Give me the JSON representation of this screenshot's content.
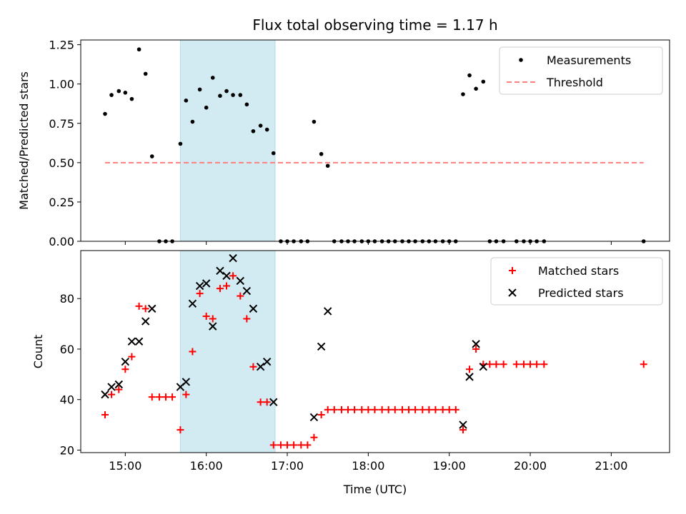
{
  "chart_data": [
    {
      "type": "scatter",
      "title": "Flux total observing time = 1.17 h",
      "xlabel": "",
      "ylabel": "Matched/Predicted stars",
      "ylim": [
        0,
        1.28
      ],
      "yticks": [
        0.0,
        0.25,
        0.5,
        0.75,
        1.0,
        1.25
      ],
      "ytick_labels": [
        "0.00",
        "0.25",
        "0.50",
        "0.75",
        "1.00",
        "1.25"
      ],
      "x_unit": "hours UTC",
      "xlim": [
        14.45,
        21.72
      ],
      "shaded_region": [
        15.68,
        16.85
      ],
      "shade_color": "#add8e6",
      "legend_position": "upper right",
      "series": [
        {
          "name": "Measurements",
          "kind": "points",
          "color": "#000000",
          "x": [
            14.75,
            14.83,
            14.92,
            15.0,
            15.08,
            15.17,
            15.25,
            15.33,
            15.42,
            15.5,
            15.58,
            15.68,
            15.75,
            15.83,
            15.92,
            16.0,
            16.08,
            16.17,
            16.25,
            16.33,
            16.42,
            16.5,
            16.58,
            16.67,
            16.75,
            16.83,
            16.92,
            17.0,
            17.08,
            17.17,
            17.25,
            17.33,
            17.42,
            17.5,
            17.58,
            17.67,
            17.75,
            17.83,
            17.92,
            18.0,
            18.08,
            18.17,
            18.25,
            18.33,
            18.42,
            18.5,
            18.58,
            18.67,
            18.75,
            18.83,
            18.92,
            19.0,
            19.08,
            19.17,
            19.25,
            19.33,
            19.42,
            19.5,
            19.58,
            19.67,
            19.83,
            19.92,
            20.0,
            20.08,
            20.17,
            21.4
          ],
          "y": [
            0.81,
            0.93,
            0.955,
            0.945,
            0.905,
            1.22,
            1.065,
            0.54,
            0,
            0,
            0,
            0.62,
            0.895,
            0.76,
            0.965,
            0.85,
            1.04,
            0.925,
            0.955,
            0.93,
            0.93,
            0.87,
            0.7,
            0.735,
            0.71,
            0.56,
            0,
            0,
            0,
            0,
            0,
            0.76,
            0.555,
            0.48,
            0,
            0,
            0,
            0,
            0,
            0,
            0,
            0,
            0,
            0,
            0,
            0,
            0,
            0,
            0,
            0,
            0,
            0,
            0,
            0.935,
            1.055,
            0.97,
            1.015,
            0,
            0,
            0,
            0,
            0,
            0,
            0,
            0,
            0
          ]
        },
        {
          "name": "Threshold",
          "kind": "dashed-line",
          "color": "#ff7f7f",
          "x": [
            14.75,
            21.4
          ],
          "y": [
            0.5,
            0.5
          ]
        }
      ]
    },
    {
      "type": "scatter",
      "title": "",
      "xlabel": "Time (UTC)",
      "ylabel": "Count",
      "ylim": [
        19,
        99
      ],
      "yticks": [
        20,
        40,
        60,
        80
      ],
      "ytick_labels": [
        "20",
        "40",
        "60",
        "80"
      ],
      "x_unit": "hours UTC",
      "xlim": [
        14.45,
        21.72
      ],
      "xticks": [
        15,
        16,
        17,
        18,
        19,
        20,
        21
      ],
      "xtick_labels": [
        "15:00",
        "16:00",
        "17:00",
        "18:00",
        "19:00",
        "20:00",
        "21:00"
      ],
      "shaded_region": [
        15.68,
        16.85
      ],
      "shade_color": "#add8e6",
      "legend_position": "upper right",
      "series": [
        {
          "name": "Matched stars",
          "kind": "plus",
          "color": "#ff0000",
          "x": [
            14.75,
            14.83,
            14.92,
            15.0,
            15.08,
            15.17,
            15.25,
            15.33,
            15.42,
            15.5,
            15.58,
            15.68,
            15.75,
            15.83,
            15.92,
            16.0,
            16.08,
            16.17,
            16.25,
            16.33,
            16.42,
            16.5,
            16.58,
            16.67,
            16.75,
            16.83,
            16.92,
            17.0,
            17.08,
            17.17,
            17.25,
            17.33,
            17.42,
            17.5,
            17.58,
            17.67,
            17.75,
            17.83,
            17.92,
            18.0,
            18.08,
            18.17,
            18.25,
            18.33,
            18.42,
            18.5,
            18.58,
            18.67,
            18.75,
            18.83,
            18.92,
            19.0,
            19.08,
            19.17,
            19.25,
            19.33,
            19.42,
            19.5,
            19.58,
            19.67,
            19.83,
            19.92,
            20.0,
            20.08,
            20.17,
            21.4
          ],
          "y": [
            34,
            42,
            44,
            52,
            57,
            77,
            76,
            41,
            41,
            41,
            41,
            28,
            42,
            59,
            82,
            73,
            72,
            84,
            85,
            89,
            81,
            72,
            53,
            39,
            39,
            22,
            22,
            22,
            22,
            22,
            22,
            25,
            34,
            36,
            36,
            36,
            36,
            36,
            36,
            36,
            36,
            36,
            36,
            36,
            36,
            36,
            36,
            36,
            36,
            36,
            36,
            36,
            36,
            28,
            52,
            60,
            54,
            54,
            54,
            54,
            54,
            54,
            54,
            54,
            54,
            54
          ]
        },
        {
          "name": "Predicted stars",
          "kind": "cross",
          "color": "#000000",
          "x": [
            14.75,
            14.83,
            14.92,
            15.0,
            15.08,
            15.17,
            15.25,
            15.33,
            15.68,
            15.75,
            15.83,
            15.92,
            16.0,
            16.08,
            16.17,
            16.25,
            16.33,
            16.42,
            16.5,
            16.58,
            16.67,
            16.75,
            16.83,
            17.33,
            17.42,
            17.5,
            19.17,
            19.25,
            19.33,
            19.42
          ],
          "y": [
            42,
            45,
            46,
            55,
            63,
            63,
            71,
            76,
            45,
            47,
            78,
            85,
            86,
            69,
            91,
            89,
            96,
            87,
            83,
            76,
            53,
            55,
            39,
            33,
            61,
            75,
            30,
            49,
            62,
            53
          ]
        }
      ]
    }
  ]
}
